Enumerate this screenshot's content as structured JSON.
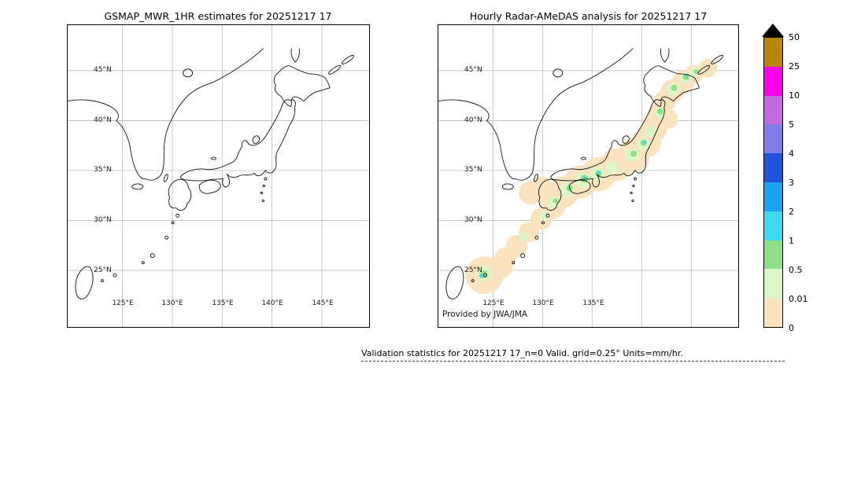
{
  "figure": {
    "background": "#ffffff",
    "frame_color": "#000000",
    "grid_color": "#b3b3b3"
  },
  "left_panel": {
    "title": "GSMAP_MWR_1HR estimates for 20251217 17"
  },
  "right_panel": {
    "title": "Hourly Radar-AMeDAS analysis for 20251217 17",
    "credit": "Provided by JWA/JMA"
  },
  "axes": {
    "lat_labels": [
      "45°N",
      "40°N",
      "35°N",
      "30°N",
      "25°N"
    ],
    "lon_labels": [
      "125°E",
      "130°E",
      "135°E",
      "140°E",
      "145°E"
    ]
  },
  "colorbar": {
    "tick_labels": [
      "50",
      "25",
      "10",
      "5",
      "4",
      "3",
      "2",
      "1",
      "0.5",
      "0.01",
      "0"
    ],
    "overflow_color": "#000000",
    "segments": [
      {
        "range": "25-50",
        "color": "#b8860b"
      },
      {
        "range": "10-25",
        "color": "#fb00e9"
      },
      {
        "range": "5-10",
        "color": "#c46ae0"
      },
      {
        "range": "4-5",
        "color": "#807de8"
      },
      {
        "range": "3-4",
        "color": "#2253dd"
      },
      {
        "range": "2-3",
        "color": "#1ba3f2"
      },
      {
        "range": "1-2",
        "color": "#41d9f0"
      },
      {
        "range": "0.5-1",
        "color": "#8ee087"
      },
      {
        "range": "0.01-0.5",
        "color": "#dcf6c8"
      },
      {
        "range": "0-0.01",
        "color": "#fce3c0"
      }
    ]
  },
  "footer": {
    "stats": "Validation statistics for 20251217 17_n=0 Valid. grid=0.25° Units=mm/hr."
  },
  "chart_data": {
    "type": "heatmap",
    "panels": [
      {
        "title": "GSMAP_MWR_1HR estimates for 20251217 17",
        "content": "blank map - no satellite precipitation estimates plotted"
      },
      {
        "title": "Hourly Radar-AMeDAS analysis for 20251217 17",
        "content": "light precipitation (mostly 0.01-1 mm/hr, locally 1-2 mm/hr) in a band along the Japanese archipelago from Okinawa through Kyushu, Shikoku, Honshu to Hokkaido"
      }
    ],
    "colorbar_values": [
      0,
      0.01,
      0.5,
      1,
      2,
      3,
      4,
      5,
      10,
      25,
      50
    ],
    "units": "mm/hr",
    "lon_tick_values": [
      125,
      130,
      135,
      140,
      145
    ],
    "lat_tick_values": [
      45,
      40,
      35,
      30,
      25
    ],
    "grid": true,
    "legend_position": "right colorbar"
  }
}
